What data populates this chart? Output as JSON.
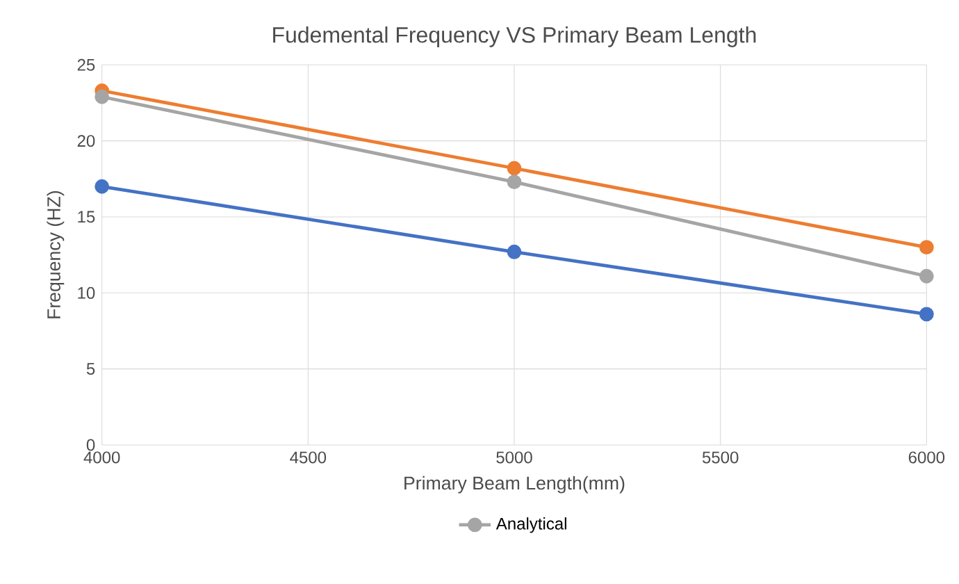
{
  "chart_data": {
    "type": "line",
    "title": "Fudemental Frequency VS Primary Beam Length",
    "xlabel": "Primary Beam Length(mm)",
    "ylabel": "Frequency (HZ)",
    "x": [
      4000,
      5000,
      6000
    ],
    "series": [
      {
        "color": "#4472c4",
        "values": [
          17.0,
          12.7,
          8.6
        ]
      },
      {
        "color": "#ed7d31",
        "values": [
          23.3,
          18.2,
          13.0
        ]
      },
      {
        "name": "Analytical",
        "color": "#a5a5a5",
        "values": [
          22.9,
          17.3,
          11.1
        ]
      }
    ],
    "xlim": [
      4000,
      6000
    ],
    "xticks": [
      4000,
      4500,
      5000,
      5500,
      6000
    ],
    "ylim": [
      0,
      25
    ],
    "yticks": [
      0,
      5,
      10,
      15,
      20,
      25
    ],
    "grid": true,
    "legend": "bottom",
    "marker": "circle",
    "line_style": "solid"
  }
}
